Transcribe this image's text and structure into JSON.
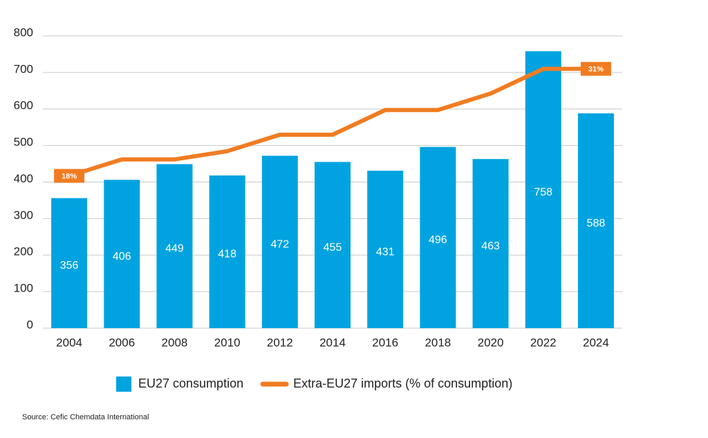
{
  "chart_data": {
    "type": "bar",
    "categories": [
      "2004",
      "2006",
      "2008",
      "2010",
      "2012",
      "2014",
      "2016",
      "2018",
      "2020",
      "2022",
      "2024"
    ],
    "ylim": [
      0,
      800
    ],
    "yticks": [
      0,
      100,
      200,
      300,
      400,
      500,
      600,
      700,
      800
    ],
    "grid": true,
    "y2lim": [
      -0.5,
      35
    ],
    "series": [
      {
        "name": "EU27 consumption",
        "type": "bar",
        "color": "#00a3e0",
        "values": [
          356,
          406,
          449,
          418,
          472,
          455,
          431,
          496,
          463,
          758,
          588
        ]
      },
      {
        "name": "Extra-EU27 imports (% of consumption)",
        "type": "line",
        "axis": "y2",
        "color": "#f07c22",
        "values": [
          18,
          20,
          20,
          21,
          23,
          23,
          26,
          26,
          28,
          31,
          31
        ],
        "value_labels": [
          "18%",
          null,
          null,
          null,
          null,
          null,
          null,
          null,
          null,
          null,
          "31%"
        ]
      }
    ],
    "source": "Source: Cefic Chemdata International"
  }
}
